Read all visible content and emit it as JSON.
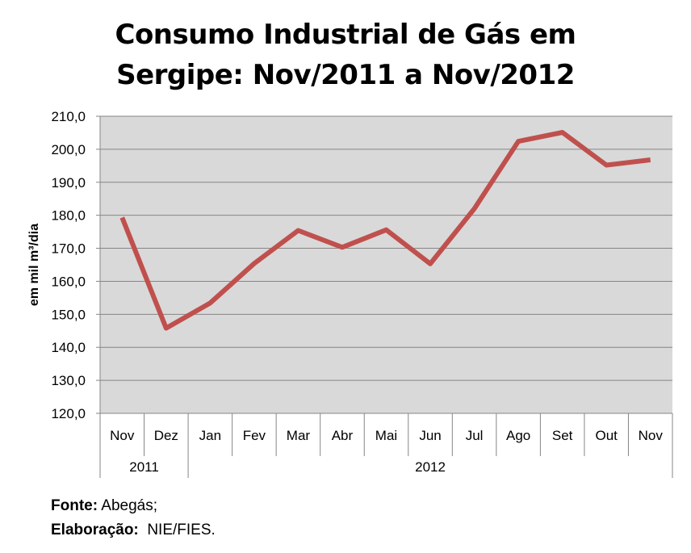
{
  "chart_data": {
    "type": "line",
    "title": [
      "Consumo Industrial de Gás em",
      "Sergipe: Nov/2011 a Nov/2012"
    ],
    "ylabel": "em mil m³/dia",
    "xlabel": "",
    "ylim": [
      120,
      210
    ],
    "yticks": [
      "120,0",
      "130,0",
      "140,0",
      "150,0",
      "160,0",
      "170,0",
      "180,0",
      "190,0",
      "200,0",
      "210,0"
    ],
    "categories": [
      "Nov",
      "Dez",
      "Jan",
      "Fev",
      "Mar",
      "Abr",
      "Mai",
      "Jun",
      "Jul",
      "Ago",
      "Set",
      "Out",
      "Nov"
    ],
    "groups": [
      {
        "label": "2011",
        "count": 2
      },
      {
        "label": "2012",
        "count": 11
      }
    ],
    "series": [
      {
        "values": [
          179.3,
          145.8,
          153.4,
          165.4,
          175.4,
          170.3,
          175.6,
          165.3,
          182.0,
          202.4,
          205.1,
          195.2,
          196.8
        ],
        "color": "#c0504d"
      }
    ],
    "grid": true,
    "plot_bg": "#d9d9d9"
  },
  "footer": {
    "source_label": "Fonte:",
    "source_value": "Abegás;",
    "credit_label": "Elaboração:",
    "credit_value": "NIE/FIES."
  }
}
